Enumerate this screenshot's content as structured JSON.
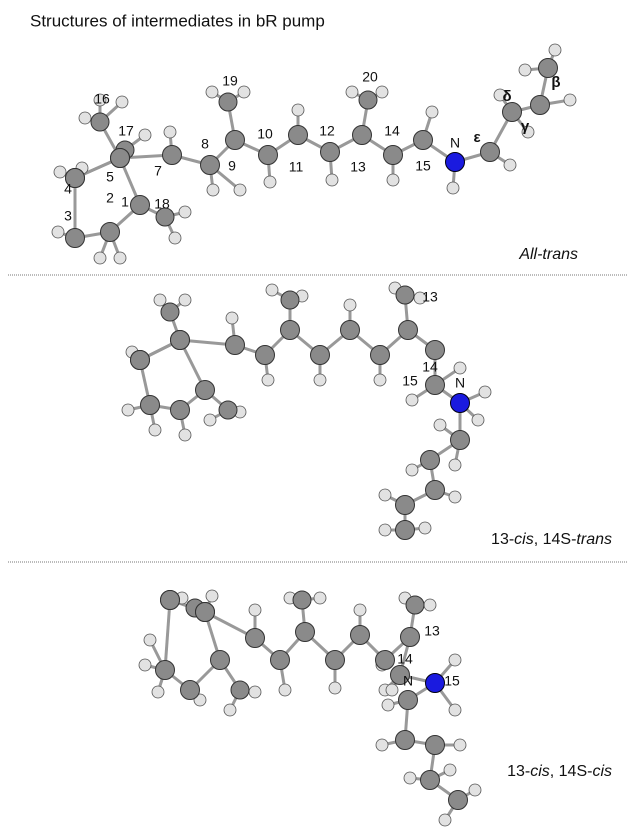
{
  "title": "Structures of intermediates in bR pump",
  "panels": [
    {
      "caption": [
        {
          "text": "All-trans",
          "italic": true
        }
      ],
      "atom_labels": [
        "16",
        "17",
        "4",
        "5",
        "7",
        "8",
        "19",
        "9",
        "10",
        "11",
        "12",
        "20",
        "13",
        "14",
        "15",
        "N",
        "ε",
        "δ",
        "γ",
        "β",
        "3",
        "2",
        "1",
        "18"
      ]
    },
    {
      "caption": [
        {
          "text": "13-",
          "italic": false
        },
        {
          "text": "cis",
          "italic": true
        },
        {
          "text": ", 14S-",
          "italic": false
        },
        {
          "text": "trans",
          "italic": true
        }
      ],
      "atom_labels": [
        "13",
        "14",
        "15",
        "N"
      ]
    },
    {
      "caption": [
        {
          "text": "13-",
          "italic": false
        },
        {
          "text": "cis",
          "italic": true
        },
        {
          "text": ", 14S-",
          "italic": false
        },
        {
          "text": "cis",
          "italic": true
        }
      ],
      "atom_labels": [
        "13",
        "14",
        "N",
        "15"
      ]
    }
  ]
}
